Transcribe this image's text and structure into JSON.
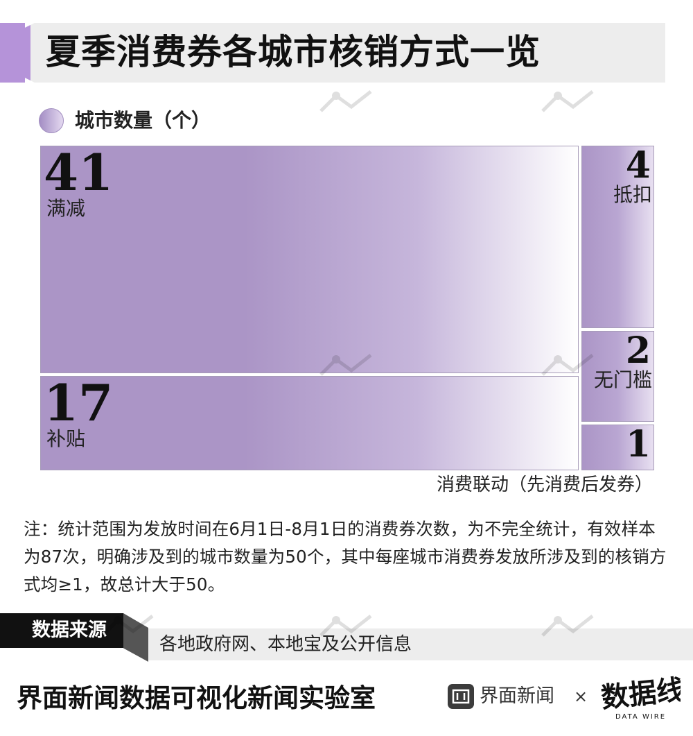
{
  "title": "夏季消费券各城市核销方式一览",
  "legend_label": "城市数量（个）",
  "chart_data": {
    "type": "treemap",
    "unit": "个",
    "items": [
      {
        "label": "满减",
        "value": 41
      },
      {
        "label": "补贴",
        "value": 17
      },
      {
        "label": "抵扣",
        "value": 4
      },
      {
        "label": "无门槛",
        "value": 2
      },
      {
        "label": "消费联动（先消费后发券）",
        "value": 1
      }
    ]
  },
  "note": "注：统计范围为发放时间在6月1日-8月1日的消费券次数，为不完全统计，有效样本为87次，明确涉及到的城市数量为50个，其中每座城市消费券发放所涉及到的核销方式均≥1，故总计大于50。",
  "source": {
    "tag": "数据来源",
    "text": "各地政府网、本地宝及公开信息"
  },
  "footer": {
    "lab_name": "界面新闻数据可视化新闻实验室",
    "brand_name": "界面新闻",
    "cross": "×",
    "logo_text": "数据线",
    "logo_sub": "DATA WIRE"
  },
  "colors": {
    "accent": "#b593d9",
    "tile": "#ab95c6",
    "band": "#ededed"
  }
}
